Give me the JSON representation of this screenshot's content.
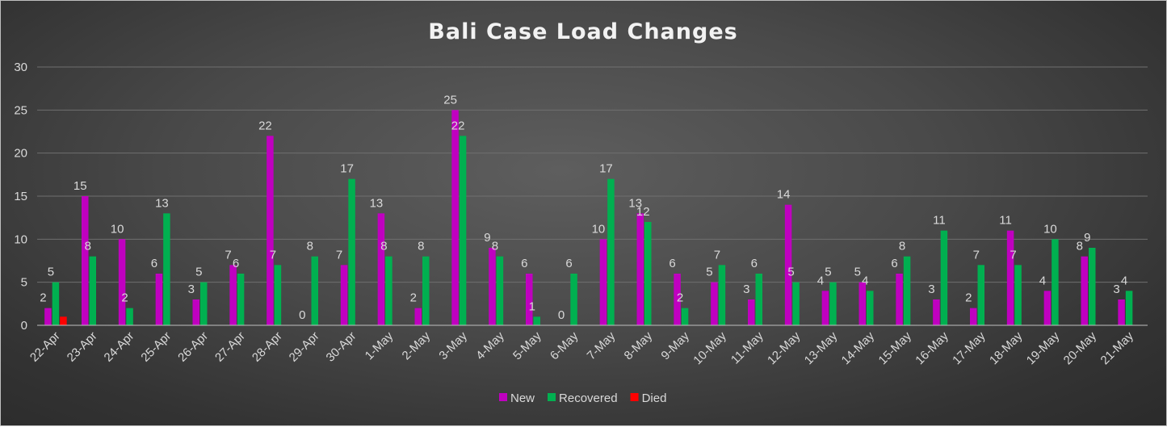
{
  "chart_data": {
    "type": "bar",
    "title": "Bali Case Load Changes",
    "xlabel": "",
    "ylabel": "",
    "ylim": [
      0,
      30
    ],
    "yticks": [
      0,
      5,
      10,
      15,
      20,
      25,
      30
    ],
    "grid": true,
    "legend_position": "bottom",
    "categories": [
      "22-Apr",
      "23-Apr",
      "24-Apr",
      "25-Apr",
      "26-Apr",
      "27-Apr",
      "28-Apr",
      "29-Apr",
      "30-Apr",
      "1-May",
      "2-May",
      "3-May",
      "4-May",
      "5-May",
      "6-May",
      "7-May",
      "8-May",
      "9-May",
      "10-May",
      "11-May",
      "12-May",
      "13-May",
      "14-May",
      "15-May",
      "16-May",
      "17-May",
      "18-May",
      "19-May",
      "20-May",
      "21-May"
    ],
    "series": [
      {
        "name": "New",
        "color": "#c000c0",
        "values": [
          2,
          15,
          10,
          6,
          3,
          7,
          22,
          0,
          7,
          13,
          2,
          25,
          9,
          6,
          0,
          10,
          13,
          6,
          5,
          3,
          14,
          4,
          5,
          6,
          3,
          2,
          11,
          4,
          8,
          3
        ]
      },
      {
        "name": "Recovered",
        "color": "#00b050",
        "values": [
          5,
          8,
          2,
          13,
          5,
          6,
          7,
          8,
          17,
          8,
          8,
          22,
          8,
          1,
          6,
          17,
          12,
          2,
          7,
          6,
          5,
          5,
          4,
          8,
          11,
          7,
          7,
          10,
          9,
          4
        ]
      },
      {
        "name": "Died",
        "color": "#ff0000",
        "values": [
          1,
          0,
          0,
          0,
          0,
          0,
          0,
          0,
          0,
          0,
          0,
          0,
          0,
          0,
          0,
          0,
          0,
          0,
          0,
          0,
          0,
          0,
          0,
          0,
          0,
          0,
          0,
          0,
          0,
          0
        ]
      }
    ]
  }
}
